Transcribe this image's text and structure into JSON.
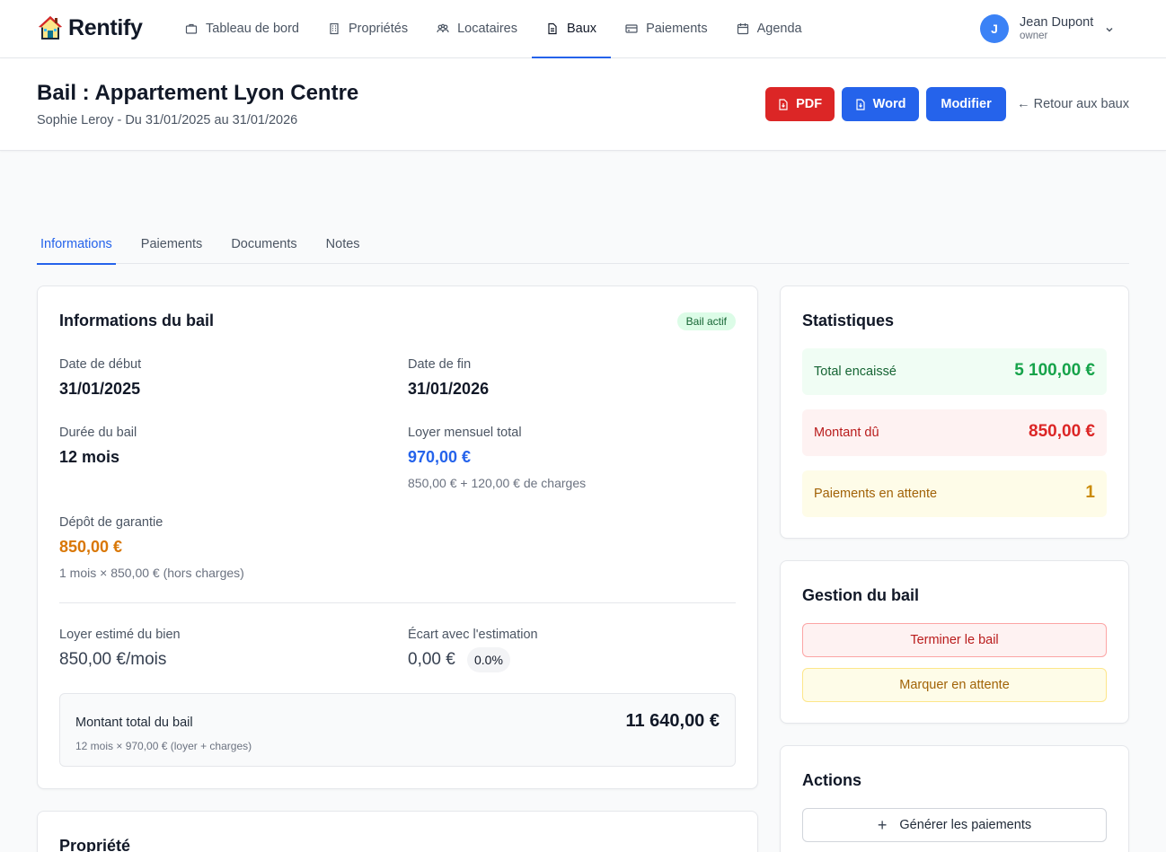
{
  "app": {
    "name": "Rentify"
  },
  "nav": {
    "items": [
      {
        "label": "Tableau de bord",
        "icon": "briefcase-icon"
      },
      {
        "label": "Propriétés",
        "icon": "building-icon"
      },
      {
        "label": "Locataires",
        "icon": "users-icon"
      },
      {
        "label": "Baux",
        "icon": "document-icon"
      },
      {
        "label": "Paiements",
        "icon": "credit-card-icon"
      },
      {
        "label": "Agenda",
        "icon": "calendar-icon"
      }
    ],
    "active": "Baux"
  },
  "user": {
    "initial": "J",
    "name": "Jean Dupont",
    "role": "owner"
  },
  "header": {
    "title": "Bail : Appartement Lyon Centre",
    "subtitle": "Sophie Leroy - Du 31/01/2025 au 31/01/2026",
    "pdf_label": "PDF",
    "word_label": "Word",
    "edit_label": "Modifier",
    "back_label": "← Retour aux baux"
  },
  "tabs": [
    "Informations",
    "Paiements",
    "Documents",
    "Notes"
  ],
  "lease_info": {
    "title": "Informations du bail",
    "status_badge": "Bail actif",
    "start_label": "Date de début",
    "start_value": "31/01/2025",
    "end_label": "Date de fin",
    "end_value": "31/01/2026",
    "duration_label": "Durée du bail",
    "duration_value": "12 mois",
    "rent_label": "Loyer mensuel total",
    "rent_value": "970,00 €",
    "rent_note": "850,00 € + 120,00 € de charges",
    "deposit_label": "Dépôt de garantie",
    "deposit_value": "850,00 €",
    "deposit_note": "1 mois × 850,00 € (hors charges)",
    "estimate_label": "Loyer estimé du bien",
    "estimate_value": "850,00 €/mois",
    "gap_label": "Écart avec l'estimation",
    "gap_value": "0,00 €",
    "gap_pct": "0.0%",
    "total_label": "Montant total du bail",
    "total_note": "12 mois × 970,00 € (loyer + charges)",
    "total_value": "11 640,00 €"
  },
  "property": {
    "title": "Propriété"
  },
  "stats": {
    "title": "Statistiques",
    "collected_label": "Total encaissé",
    "collected_value": "5 100,00 €",
    "due_label": "Montant dû",
    "due_value": "850,00 €",
    "pending_label": "Paiements en attente",
    "pending_value": "1"
  },
  "management": {
    "title": "Gestion du bail",
    "terminate_label": "Terminer le bail",
    "mark_pending_label": "Marquer en attente"
  },
  "actions": {
    "title": "Actions",
    "generate_label": "Générer les paiements"
  }
}
